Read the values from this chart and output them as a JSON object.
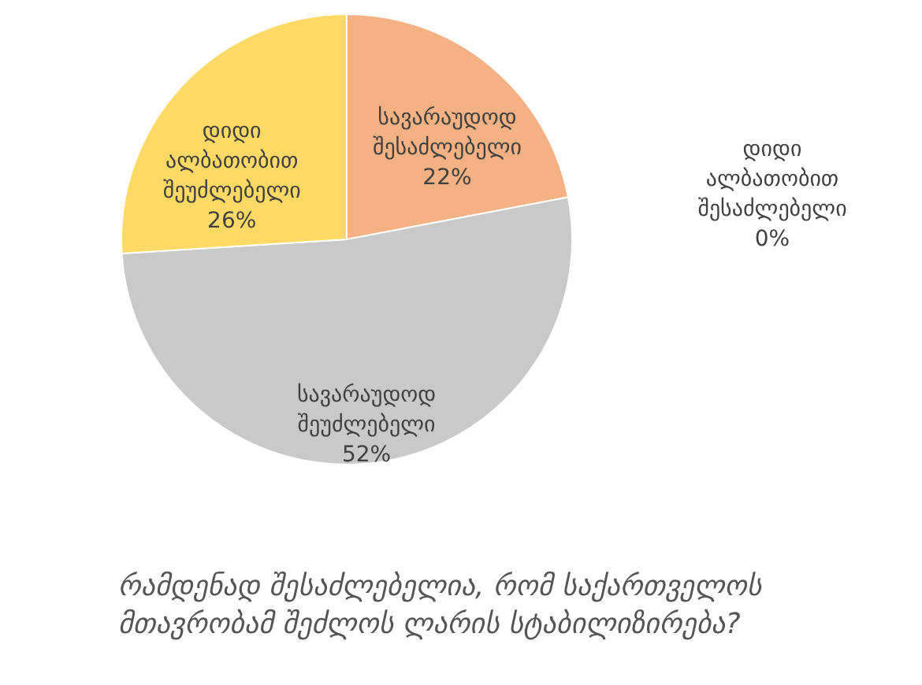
{
  "chart_data": {
    "type": "pie",
    "title": "რამდენად შესაძლებელია, რომ საქართველოს მთავრობამ შეძლოს ლარის სტაბილიზირება?",
    "categories": [
      "დიდი ალბათობით შესაძლებელი",
      "სავარაუდოდ შესაძლებელი",
      "სავარაუდოდ შეუძლებელი",
      "დიდი ალბათობით შეუძლებელი"
    ],
    "values": [
      0,
      22,
      52,
      26
    ],
    "value_labels": [
      "0%",
      "22%",
      "52%",
      "26%"
    ],
    "colors": [
      "#9dc3e6",
      "#f4b183",
      "#c9c9c9",
      "#ffd966"
    ]
  }
}
